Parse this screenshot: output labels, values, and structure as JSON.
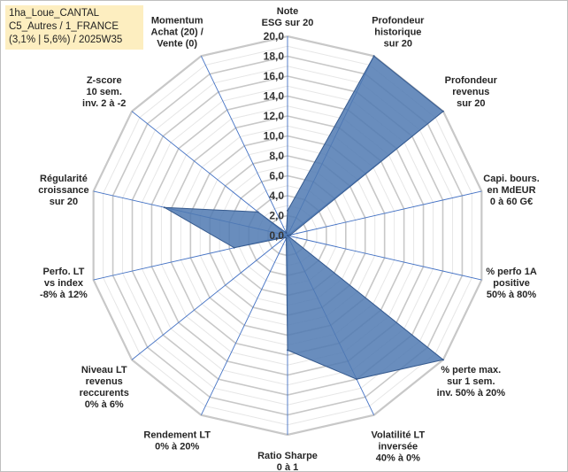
{
  "info_box": {
    "line1": "1ha_Loue_CANTAL",
    "line2": "C5_Autres / 1_FRANCE",
    "line3": "(3,1% | 5,6%) / 2025W35"
  },
  "chart_data": {
    "type": "radar",
    "rmin": 0,
    "rmax": 20,
    "tick_step": 2,
    "tick_labels": [
      "0,0",
      "2,0",
      "4,0",
      "6,0",
      "8,0",
      "10,0",
      "12,0",
      "14,0",
      "16,0",
      "18,0",
      "20,0"
    ],
    "grid": true,
    "axes": [
      {
        "label": [
          "Note",
          "ESG sur 20"
        ],
        "value": 2.5
      },
      {
        "label": [
          "Profondeur",
          "historique",
          "sur 20"
        ],
        "value": 20
      },
      {
        "label": [
          "Profondeur",
          "revenus",
          "sur 20"
        ],
        "value": 20
      },
      {
        "label": [
          "Capi. bours.",
          "en MdEUR",
          "0 à 60 G€"
        ],
        "value": 0.3
      },
      {
        "label": [
          "% perfo 1A",
          "positive",
          "50% à 80%"
        ],
        "value": 0
      },
      {
        "label": [
          "% perte max.",
          "sur 1 sem.",
          "inv. 50% à 20%"
        ],
        "value": 20
      },
      {
        "label": [
          "Volatilité LT",
          "inversée",
          "40% à 0%"
        ],
        "value": 16
      },
      {
        "label": [
          "Ratio Sharpe",
          "0 à 1"
        ],
        "value": 11.5
      },
      {
        "label": [
          "Rendement LT",
          "0% à 20%"
        ],
        "value": 0.3
      },
      {
        "label": [
          "Niveau LT",
          "revenus",
          "reccurents",
          "0% à 6%"
        ],
        "value": 0.3
      },
      {
        "label": [
          "Perfo. LT",
          "vs index",
          "-8% à 12%"
        ],
        "value": 5.5
      },
      {
        "label": [
          "Régularité",
          "croissance",
          "sur 20"
        ],
        "value": 12.7
      },
      {
        "label": [
          "Z-score",
          "10 sem.",
          "inv. 2 à -2"
        ],
        "value": 3.8
      },
      {
        "label": [
          "Momentum",
          "Achat (20) /",
          "Vente (0)"
        ],
        "value": 0.3
      }
    ],
    "colors": {
      "fill": "#4f79b1",
      "stroke": "#365a8e",
      "grid": "#d0d0d0",
      "spoke": "#4472c4"
    }
  }
}
